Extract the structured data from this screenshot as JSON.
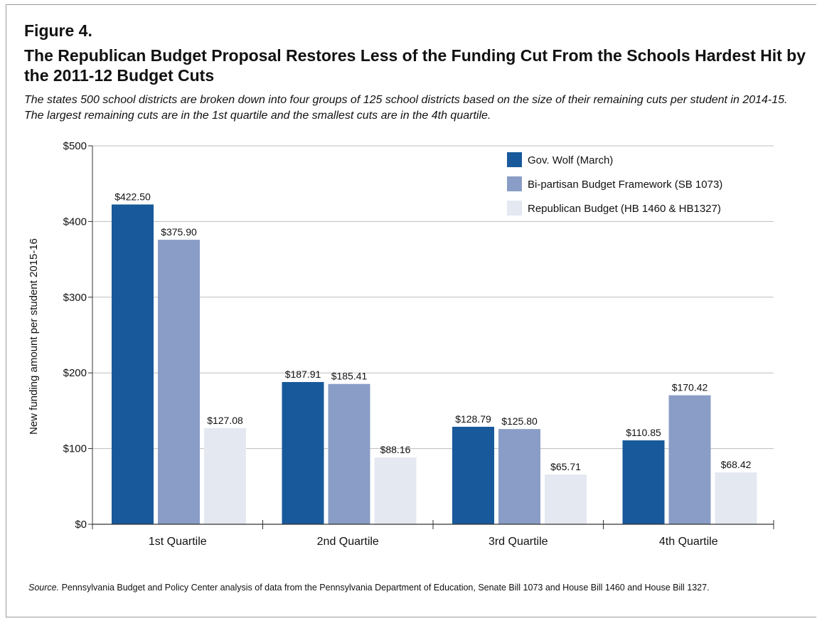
{
  "figure": {
    "label": "Figure 4.",
    "title": "The Republican Budget Proposal Restores Less of the Funding Cut From the Schools Hardest Hit by the 2011-12 Budget Cuts",
    "subtitle": "The states 500 school districts are broken down into four groups of 125 school districts based on the size of their remaining cuts per student in 2014-15.  The largest remaining cuts are in the 1st quartile and the smallest cuts are in the 4th quartile.",
    "source_label": "Source.",
    "source_text": " Pennsylvania Budget and Policy Center analysis of data from the Pennsylvania Department of Education, Senate Bill 1073 and House Bill 1460 and House Bill 1327."
  },
  "chart_data": {
    "type": "bar",
    "ylabel": "New funding amount per student 2015-16",
    "xlabel": "",
    "ylim": [
      0,
      500
    ],
    "yticks": [
      0,
      100,
      200,
      300,
      400,
      500
    ],
    "ytick_labels": [
      "$0",
      "$100",
      "$200",
      "$300",
      "$400",
      "$500"
    ],
    "grid": true,
    "legend_position": "top-right",
    "categories": [
      "1st Quartile",
      "2nd Quartile",
      "3rd Quartile",
      "4th Quartile"
    ],
    "series": [
      {
        "name": "Gov. Wolf (March)",
        "color": "#17599a",
        "values": [
          422.5,
          187.91,
          128.79,
          110.85
        ],
        "labels": [
          "$422.50",
          "$187.91",
          "$128.79",
          "$110.85"
        ]
      },
      {
        "name": "Bi-partisan Budget Framework (SB 1073)",
        "color": "#8a9dc6",
        "values": [
          375.9,
          185.41,
          125.8,
          170.42
        ],
        "labels": [
          "$375.90",
          "$185.41",
          "$125.80",
          "$170.42"
        ]
      },
      {
        "name": "Republican Budget (HB 1460 & HB1327)",
        "color": "#e4e8f1",
        "values": [
          127.08,
          88.16,
          65.71,
          68.42
        ],
        "labels": [
          "$127.08",
          "$88.16",
          "$65.71",
          "$68.42"
        ]
      }
    ]
  }
}
